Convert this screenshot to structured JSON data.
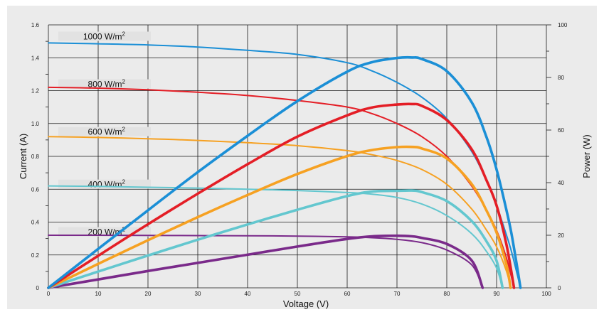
{
  "chart_data": {
    "type": "line",
    "title": "",
    "xlabel": "Voltage (V)",
    "ylabel": "Current (A)",
    "y2label": "Power (W)",
    "xlim": [
      0,
      100
    ],
    "ylim": [
      0,
      1.6
    ],
    "y2lim": [
      0,
      100
    ],
    "x_ticks": [
      "0",
      "10",
      "20",
      "30",
      "40",
      "50",
      "60",
      "70",
      "80",
      "90",
      "100"
    ],
    "y_ticks": [
      "0",
      "0.2",
      "0.4",
      "0.6",
      "0.8",
      "1.0",
      "1.2",
      "1.4",
      "1.6"
    ],
    "y2_ticks": [
      "0",
      "20",
      "40",
      "60",
      "80",
      "100"
    ],
    "grid": true,
    "series": [
      {
        "name": "1000 W/m²",
        "color": "#1b8fd6",
        "iv": [
          [
            0,
            1.49
          ],
          [
            10,
            1.485
          ],
          [
            20,
            1.478
          ],
          [
            30,
            1.465
          ],
          [
            40,
            1.445
          ],
          [
            50,
            1.42
          ],
          [
            60,
            1.37
          ],
          [
            65,
            1.32
          ],
          [
            70,
            1.25
          ],
          [
            75,
            1.16
          ],
          [
            80,
            1.03
          ],
          [
            85,
            0.83
          ],
          [
            88,
            0.65
          ],
          [
            90,
            0.5
          ],
          [
            92,
            0.32
          ],
          [
            93,
            0.22
          ],
          [
            94,
            0.1
          ],
          [
            94.8,
            0
          ]
        ],
        "pv": [
          [
            0,
            0
          ],
          [
            10,
            14.8
          ],
          [
            20,
            29.5
          ],
          [
            30,
            44
          ],
          [
            40,
            57.8
          ],
          [
            50,
            71
          ],
          [
            60,
            82.2
          ],
          [
            65,
            85.8
          ],
          [
            70,
            87.4
          ],
          [
            73,
            87.6
          ],
          [
            75,
            87
          ],
          [
            80,
            82.4
          ],
          [
            85,
            70.6
          ],
          [
            88,
            57.2
          ],
          [
            90,
            45
          ],
          [
            92,
            29.4
          ],
          [
            93,
            20.5
          ],
          [
            94,
            9.4
          ],
          [
            94.8,
            0
          ]
        ]
      },
      {
        "name": "800 W/m²",
        "color": "#e41e26",
        "iv": [
          [
            0,
            1.22
          ],
          [
            10,
            1.215
          ],
          [
            20,
            1.205
          ],
          [
            30,
            1.19
          ],
          [
            40,
            1.17
          ],
          [
            50,
            1.14
          ],
          [
            60,
            1.1
          ],
          [
            65,
            1.06
          ],
          [
            70,
            1.0
          ],
          [
            75,
            0.92
          ],
          [
            80,
            0.8
          ],
          [
            85,
            0.62
          ],
          [
            88,
            0.47
          ],
          [
            90,
            0.35
          ],
          [
            92,
            0.18
          ],
          [
            93.5,
            0
          ]
        ],
        "pv": [
          [
            0,
            0
          ],
          [
            10,
            12.2
          ],
          [
            20,
            24.2
          ],
          [
            30,
            35.8
          ],
          [
            40,
            47
          ],
          [
            50,
            57.5
          ],
          [
            60,
            65.6
          ],
          [
            65,
            68.6
          ],
          [
            70,
            69.7
          ],
          [
            73,
            69.9
          ],
          [
            75,
            69.2
          ],
          [
            80,
            63.8
          ],
          [
            85,
            52.7
          ],
          [
            88,
            40.8
          ],
          [
            90,
            31.3
          ],
          [
            92,
            16.3
          ],
          [
            93.5,
            0
          ]
        ]
      },
      {
        "name": "600 W/m²",
        "color": "#f6a122",
        "iv": [
          [
            0,
            0.92
          ],
          [
            10,
            0.915
          ],
          [
            20,
            0.907
          ],
          [
            30,
            0.897
          ],
          [
            40,
            0.883
          ],
          [
            50,
            0.865
          ],
          [
            60,
            0.835
          ],
          [
            65,
            0.81
          ],
          [
            70,
            0.775
          ],
          [
            75,
            0.72
          ],
          [
            80,
            0.63
          ],
          [
            85,
            0.48
          ],
          [
            88,
            0.35
          ],
          [
            90,
            0.25
          ],
          [
            92,
            0.1
          ],
          [
            92.8,
            0
          ]
        ],
        "pv": [
          [
            0,
            0
          ],
          [
            10,
            9.1
          ],
          [
            20,
            18.1
          ],
          [
            30,
            26.9
          ],
          [
            40,
            35.3
          ],
          [
            50,
            43.3
          ],
          [
            60,
            50.1
          ],
          [
            65,
            52.4
          ],
          [
            70,
            53.5
          ],
          [
            73,
            53.6
          ],
          [
            75,
            53
          ],
          [
            80,
            49.2
          ],
          [
            85,
            39.5
          ],
          [
            88,
            29.3
          ],
          [
            90,
            21
          ],
          [
            92,
            8.6
          ],
          [
            92.8,
            0
          ]
        ]
      },
      {
        "name": "400 W/m²",
        "color": "#63c7cf",
        "iv": [
          [
            0,
            0.62
          ],
          [
            10,
            0.617
          ],
          [
            20,
            0.612
          ],
          [
            30,
            0.607
          ],
          [
            40,
            0.6
          ],
          [
            50,
            0.592
          ],
          [
            60,
            0.58
          ],
          [
            65,
            0.57
          ],
          [
            70,
            0.55
          ],
          [
            75,
            0.51
          ],
          [
            80,
            0.44
          ],
          [
            85,
            0.33
          ],
          [
            88,
            0.22
          ],
          [
            90,
            0.12
          ],
          [
            91.2,
            0
          ]
        ],
        "pv": [
          [
            0,
            0
          ],
          [
            10,
            6.2
          ],
          [
            20,
            12.3
          ],
          [
            30,
            18.3
          ],
          [
            40,
            24.1
          ],
          [
            50,
            29.7
          ],
          [
            60,
            34.9
          ],
          [
            65,
            36.6
          ],
          [
            70,
            36.9
          ],
          [
            73,
            37
          ],
          [
            75,
            36.4
          ],
          [
            80,
            33
          ],
          [
            85,
            25.4
          ],
          [
            88,
            17.6
          ],
          [
            90,
            10.3
          ],
          [
            91.2,
            0
          ]
        ]
      },
      {
        "name": "200 W/m²",
        "color": "#7a2a8a",
        "iv": [
          [
            0,
            0.32
          ],
          [
            10,
            0.32
          ],
          [
            20,
            0.319
          ],
          [
            30,
            0.318
          ],
          [
            40,
            0.317
          ],
          [
            50,
            0.315
          ],
          [
            60,
            0.31
          ],
          [
            65,
            0.305
          ],
          [
            70,
            0.295
          ],
          [
            75,
            0.275
          ],
          [
            80,
            0.23
          ],
          [
            85,
            0.14
          ],
          [
            87.2,
            0
          ]
        ],
        "pv": [
          [
            0,
            0
          ],
          [
            10,
            3.2
          ],
          [
            20,
            6.4
          ],
          [
            30,
            9.5
          ],
          [
            40,
            12.6
          ],
          [
            50,
            15.7
          ],
          [
            60,
            18.6
          ],
          [
            65,
            19.6
          ],
          [
            70,
            19.8
          ],
          [
            73,
            19.6
          ],
          [
            75,
            19
          ],
          [
            80,
            16.7
          ],
          [
            85,
            10.4
          ],
          [
            87.2,
            0
          ]
        ]
      }
    ],
    "annotations": [
      {
        "text": "1000 W/m",
        "sup": "2",
        "y": 1.52
      },
      {
        "text": "800 W/m",
        "sup": "2",
        "y": 1.23
      },
      {
        "text": "600 W/m",
        "sup": "2",
        "y": 0.94
      },
      {
        "text": "400 W/m",
        "sup": "2",
        "y": 0.62
      },
      {
        "text": "200 W/m",
        "sup": "2",
        "y": 0.33
      }
    ]
  }
}
